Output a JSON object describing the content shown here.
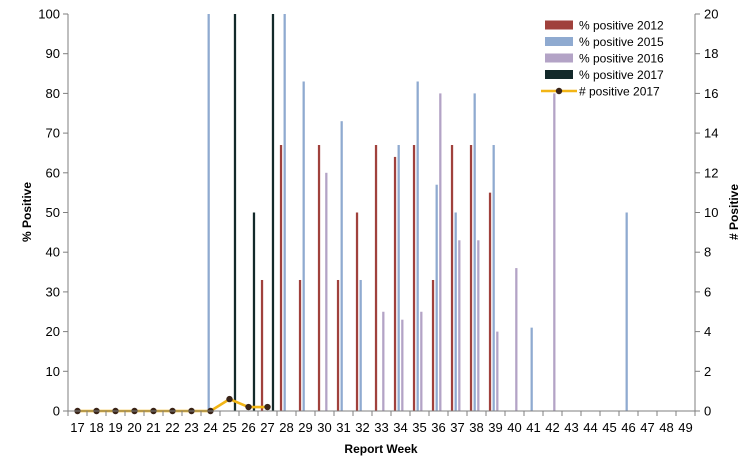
{
  "chart_data": {
    "type": "bar",
    "title": "",
    "xlabel": "Report Week",
    "ylabel_left": "% Positive",
    "ylabel_right": "# Positive",
    "ylim_left": [
      0,
      100
    ],
    "ylim_right": [
      0,
      20
    ],
    "yticks_left": [
      0,
      10,
      20,
      30,
      40,
      50,
      60,
      70,
      80,
      90,
      100
    ],
    "yticks_right": [
      0,
      2,
      4,
      6,
      8,
      10,
      12,
      14,
      16,
      18,
      20
    ],
    "grid": false,
    "legend_position": "top-right",
    "categories": [
      "17",
      "18",
      "19",
      "20",
      "21",
      "22",
      "23",
      "24",
      "25",
      "26",
      "27",
      "28",
      "29",
      "30",
      "31",
      "32",
      "33",
      "34",
      "35",
      "36",
      "37",
      "38",
      "39",
      "40",
      "41",
      "42",
      "43",
      "44",
      "45",
      "46",
      "47",
      "48",
      "49"
    ],
    "series": [
      {
        "name": "% positive 2012",
        "kind": "bar",
        "axis": "left",
        "color": "#A0413C",
        "values": [
          null,
          null,
          null,
          null,
          null,
          null,
          null,
          null,
          null,
          null,
          33,
          67,
          33,
          67,
          33,
          50,
          67,
          64,
          67,
          33,
          67,
          67,
          55,
          null,
          null,
          null,
          null,
          null,
          null,
          null,
          null,
          null,
          null
        ]
      },
      {
        "name": "% positive 2015",
        "kind": "bar",
        "axis": "left",
        "color": "#8FAAD0",
        "values": [
          null,
          null,
          null,
          null,
          null,
          null,
          null,
          100,
          null,
          null,
          null,
          100,
          83,
          null,
          73,
          33,
          null,
          67,
          83,
          57,
          50,
          80,
          67,
          null,
          21,
          null,
          null,
          null,
          null,
          50,
          null,
          null,
          null
        ]
      },
      {
        "name": "% positive 2016",
        "kind": "bar",
        "axis": "left",
        "color": "#B3A3C6",
        "values": [
          null,
          null,
          null,
          null,
          null,
          null,
          null,
          null,
          null,
          null,
          null,
          null,
          null,
          60,
          null,
          null,
          25,
          23,
          25,
          80,
          43,
          43,
          20,
          36,
          null,
          80,
          null,
          null,
          null,
          null,
          null,
          null,
          null
        ]
      },
      {
        "name": "% positive 2017",
        "kind": "bar",
        "axis": "left",
        "color": "#13292A",
        "values": [
          null,
          null,
          null,
          null,
          null,
          null,
          null,
          null,
          100,
          50,
          100,
          null,
          null,
          null,
          null,
          null,
          null,
          null,
          null,
          null,
          null,
          null,
          null,
          null,
          null,
          null,
          null,
          null,
          null,
          null,
          null,
          null,
          null
        ]
      },
      {
        "name": "# positive 2017",
        "kind": "line",
        "axis": "right",
        "color": "#F2B516",
        "marker_color": "#3A2418",
        "values": [
          0,
          0,
          0,
          0,
          0,
          0,
          0,
          0,
          0.6,
          0.2,
          0.2,
          null,
          null,
          null,
          null,
          null,
          null,
          null,
          null,
          null,
          null,
          null,
          null,
          null,
          null,
          null,
          null,
          null,
          null,
          null,
          null,
          null,
          null
        ]
      }
    ]
  }
}
